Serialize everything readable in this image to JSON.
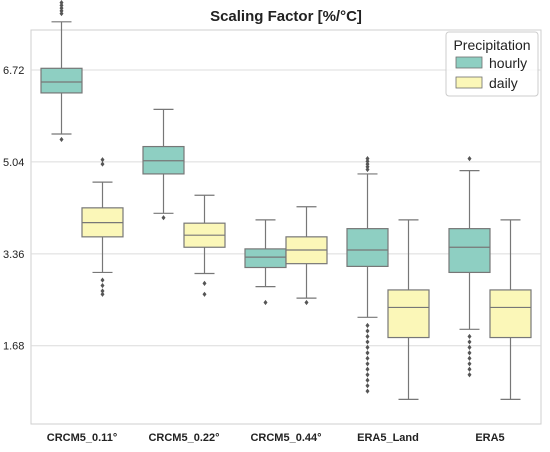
{
  "chart_data": {
    "type": "box",
    "title": "Scaling Factor [%/°C]",
    "xlabel": "",
    "ylabel": "",
    "categories": [
      "CRCM5_0.11°",
      "CRCM5_0.22°",
      "CRCM5_0.44°",
      "ERA5_Land",
      "ERA5"
    ],
    "y_ticks": [
      1.68,
      3.36,
      5.04,
      6.72
    ],
    "ylim": [
      0.25,
      7.45
    ],
    "grid": true,
    "legend": {
      "title": "Precipitation",
      "position": "top-right"
    },
    "series": [
      {
        "name": "hourly",
        "color": "#8ecfc2",
        "boxes": [
          {
            "whisker_low": 5.55,
            "q1": 6.3,
            "median": 6.5,
            "q3": 6.75,
            "whisker_high": 7.6,
            "outliers_low": [
              5.45
            ],
            "outliers_high": [
              7.75,
              7.8,
              7.85,
              7.9,
              7.95
            ]
          },
          {
            "whisker_low": 4.1,
            "q1": 4.82,
            "median": 5.06,
            "q3": 5.32,
            "whisker_high": 6.0,
            "outliers_low": [
              4.02
            ],
            "outliers_high": []
          },
          {
            "whisker_low": 2.76,
            "q1": 3.11,
            "median": 3.3,
            "q3": 3.45,
            "whisker_high": 3.98,
            "outliers_low": [
              2.47
            ],
            "outliers_high": []
          },
          {
            "whisker_low": 2.2,
            "q1": 3.13,
            "median": 3.43,
            "q3": 3.82,
            "whisker_high": 4.82,
            "outliers_low": [
              2.05,
              1.95,
              1.85,
              1.75,
              1.65,
              1.55,
              1.45,
              1.35,
              1.25,
              1.15,
              1.05,
              0.95,
              0.85
            ],
            "outliers_high": [
              4.9,
              4.95,
              5.0,
              5.05,
              5.1
            ]
          },
          {
            "whisker_low": 1.98,
            "q1": 3.02,
            "median": 3.48,
            "q3": 3.82,
            "whisker_high": 4.88,
            "outliers_low": [
              1.85,
              1.75,
              1.65,
              1.55,
              1.45,
              1.35,
              1.25,
              1.15
            ],
            "outliers_high": [
              5.1
            ]
          }
        ]
      },
      {
        "name": "daily",
        "color": "#fbf7b8",
        "boxes": [
          {
            "whisker_low": 3.02,
            "q1": 3.67,
            "median": 3.93,
            "q3": 4.2,
            "whisker_high": 4.67,
            "outliers_low": [
              2.88,
              2.78,
              2.68,
              2.62
            ],
            "outliers_high": [
              5.0,
              5.08
            ]
          },
          {
            "whisker_low": 3.0,
            "q1": 3.48,
            "median": 3.7,
            "q3": 3.92,
            "whisker_high": 4.43,
            "outliers_low": [
              2.82,
              2.62
            ],
            "outliers_high": []
          },
          {
            "whisker_low": 2.55,
            "q1": 3.18,
            "median": 3.43,
            "q3": 3.67,
            "whisker_high": 4.22,
            "outliers_low": [
              2.47
            ],
            "outliers_high": []
          },
          {
            "whisker_low": 0.7,
            "q1": 1.83,
            "median": 2.38,
            "q3": 2.7,
            "whisker_high": 3.98,
            "outliers_low": [],
            "outliers_high": []
          },
          {
            "whisker_low": 0.7,
            "q1": 1.83,
            "median": 2.38,
            "q3": 2.7,
            "whisker_high": 3.98,
            "outliers_low": [],
            "outliers_high": []
          }
        ]
      }
    ]
  }
}
